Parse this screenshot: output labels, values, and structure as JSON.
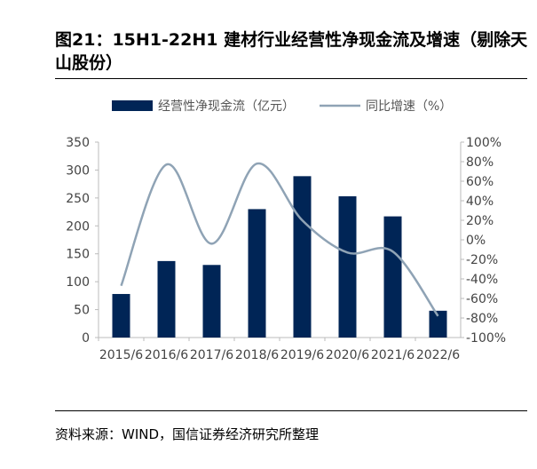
{
  "title": "图21：15H1-22H1 建材行业经营性净现金流及增速（剔除天山股份）",
  "source": "资料来源：WIND，国信证券经济研究所整理",
  "chart_data": {
    "type": "bar+line",
    "categories": [
      "2015/6",
      "2016/6",
      "2017/6",
      "2018/6",
      "2019/6",
      "2020/6",
      "2021/6",
      "2022/6"
    ],
    "series": [
      {
        "name": "经营性净现金流（亿元）",
        "type": "bar",
        "axis": "left",
        "color": "#002556",
        "values": [
          78,
          137,
          130,
          230,
          289,
          253,
          217,
          48
        ]
      },
      {
        "name": "同比增速（%）",
        "type": "line",
        "axis": "right",
        "color": "#8fa3b5",
        "values": [
          -47,
          77,
          -4,
          78,
          20,
          -13,
          -12,
          -78
        ]
      }
    ],
    "left_axis": {
      "range": [
        0,
        350
      ],
      "ticks": [
        "0",
        "50",
        "100",
        "150",
        "200",
        "250",
        "300",
        "350"
      ]
    },
    "right_axis": {
      "range": [
        -100,
        100
      ],
      "ticks": [
        "-100%",
        "-80%",
        "-60%",
        "-40%",
        "-20%",
        "0%",
        "20%",
        "40%",
        "60%",
        "80%",
        "100%"
      ]
    },
    "legend_placement": "top",
    "grid": false
  }
}
